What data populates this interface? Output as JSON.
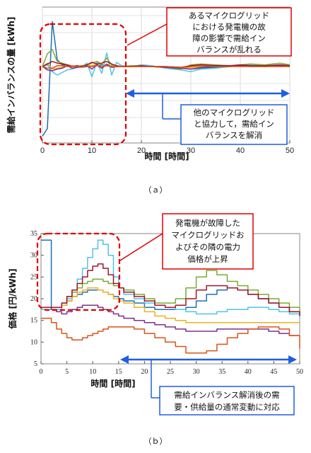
{
  "chart_data": [
    {
      "type": "line",
      "caption": "（ａ）",
      "xlabel": "時間 [時間]",
      "ylabel": "需給インバランスの量 [kWh]",
      "xlim": [
        0,
        50
      ],
      "ylim": [
        -9,
        7
      ],
      "xticks": [
        0,
        10,
        20,
        30,
        40,
        50
      ],
      "grid": true,
      "annotations": [
        {
          "text": [
            "あるマイクログリッド",
            "における発電機の故",
            "障の影響で需給イン",
            "バランスが乱れる"
          ],
          "color": "#e00000"
        },
        {
          "text": [
            "他のマイクログリッド",
            "と協力して，需給イン",
            "バランスを解消"
          ],
          "color": "#1f5fe0"
        }
      ],
      "series": [
        {
          "color": "#1f6fb5",
          "x": [
            0,
            1,
            2,
            3,
            4,
            5,
            6,
            7,
            8,
            9,
            10,
            11,
            12,
            13,
            14,
            15,
            16,
            18,
            20,
            22,
            25,
            28,
            30,
            32,
            35,
            38,
            40,
            42,
            45,
            48,
            50
          ],
          "y": [
            -8.2,
            -7.3,
            5.3,
            0.8,
            0.2,
            0.1,
            0.1,
            0.0,
            -0.1,
            0.0,
            0.1,
            0.1,
            0.2,
            0.1,
            0.0,
            0.0,
            0.0,
            0.0,
            0.1,
            0.0,
            -0.1,
            -0.2,
            -0.3,
            -0.2,
            -0.1,
            0.0,
            0.1,
            0.1,
            0.0,
            0.1,
            0.0
          ]
        },
        {
          "color": "#4fc3e8",
          "x": [
            0,
            1,
            2,
            3,
            4,
            5,
            6,
            7,
            8,
            9,
            10,
            11,
            12,
            13,
            14,
            15,
            16,
            18,
            20,
            22,
            25,
            28,
            30,
            32,
            35,
            38,
            40,
            42,
            45,
            48,
            50
          ],
          "y": [
            0,
            0.2,
            -0.6,
            -1.0,
            -0.7,
            -0.4,
            -0.3,
            -0.1,
            0.0,
            0.4,
            -1.2,
            0.5,
            -0.8,
            1.6,
            -1.0,
            0.5,
            0.1,
            0.0,
            0.2,
            0.1,
            -0.2,
            -0.4,
            -0.6,
            -0.3,
            -0.2,
            0.0,
            0.1,
            0.2,
            0.1,
            0.2,
            0.1
          ]
        },
        {
          "color": "#77ac30",
          "x": [
            0,
            1,
            2,
            3,
            4,
            5,
            6,
            7,
            8,
            9,
            10,
            11,
            12,
            13,
            14,
            15,
            16,
            18,
            20,
            22,
            25,
            28,
            30,
            32,
            35,
            38,
            40,
            42,
            45,
            48,
            50
          ],
          "y": [
            0,
            1.5,
            2.0,
            0.6,
            0.4,
            0.2,
            0.1,
            0.0,
            0.1,
            0.2,
            0.4,
            0.6,
            0.3,
            1.0,
            0.2,
            0.0,
            0.0,
            0.1,
            0.1,
            0.0,
            -0.1,
            -0.3,
            0.2,
            0.3,
            0.2,
            0.1,
            0.2,
            0.3,
            0.2,
            0.4,
            0.2
          ]
        },
        {
          "color": "#edb120",
          "x": [
            0,
            1,
            2,
            3,
            4,
            5,
            6,
            7,
            8,
            9,
            10,
            11,
            12,
            13,
            14,
            15,
            16,
            18,
            20,
            22,
            25,
            28,
            30,
            32,
            35,
            38,
            40,
            42,
            45,
            48,
            50
          ],
          "y": [
            0,
            0.4,
            -0.3,
            -0.2,
            -0.1,
            0.2,
            0.1,
            0.0,
            -0.1,
            0.2,
            0.1,
            0.3,
            -0.2,
            0.2,
            0.1,
            0.0,
            0.0,
            0.0,
            0.1,
            0.0,
            0.0,
            -0.2,
            -0.1,
            0.0,
            0.1,
            0.0,
            0.1,
            0.1,
            0.0,
            0.1,
            0.0
          ]
        },
        {
          "color": "#7e2f8e",
          "x": [
            0,
            1,
            2,
            3,
            4,
            5,
            6,
            7,
            8,
            9,
            10,
            11,
            12,
            13,
            14,
            15,
            16,
            18,
            20,
            22,
            25,
            28,
            30,
            32,
            35,
            38,
            40,
            42,
            45,
            48,
            50
          ],
          "y": [
            0,
            -0.4,
            -0.5,
            -0.3,
            -0.2,
            0.1,
            -0.2,
            -0.1,
            0.0,
            0.1,
            -0.3,
            0.2,
            -0.2,
            0.3,
            -0.1,
            0.0,
            0.0,
            0.0,
            0.0,
            0.0,
            -0.1,
            -0.2,
            -0.3,
            -0.1,
            0.0,
            0.0,
            0.1,
            0.0,
            0.0,
            0.1,
            0.0
          ]
        },
        {
          "color": "#a2142f",
          "x": [
            0,
            1,
            2,
            3,
            4,
            5,
            6,
            7,
            8,
            9,
            10,
            11,
            12,
            13,
            14,
            15,
            16,
            18,
            20,
            22,
            25,
            28,
            30,
            32,
            35,
            38,
            40,
            42,
            45,
            48,
            50
          ],
          "y": [
            0,
            0.3,
            0.6,
            0.4,
            0.3,
            0.2,
            0.0,
            0.1,
            0.0,
            0.2,
            0.5,
            0.3,
            0.4,
            0.6,
            0.3,
            0.1,
            0.0,
            0.0,
            0.1,
            0.0,
            0.0,
            -0.1,
            0.1,
            0.2,
            0.1,
            0.1,
            0.2,
            0.1,
            0.1,
            0.2,
            0.1
          ]
        },
        {
          "color": "#d95319",
          "x": [
            0,
            1,
            2,
            3,
            4,
            5,
            6,
            7,
            8,
            9,
            10,
            11,
            12,
            13,
            14,
            15,
            16,
            18,
            20,
            22,
            25,
            28,
            30,
            32,
            35,
            38,
            40,
            42,
            45,
            48,
            50
          ],
          "y": [
            0,
            -0.2,
            -0.2,
            0.1,
            0.1,
            0.0,
            0.0,
            0.0,
            0.1,
            0.0,
            0.0,
            0.1,
            0.0,
            0.1,
            0.0,
            0.0,
            0.0,
            0.0,
            0.0,
            0.0,
            0.0,
            -0.1,
            0.0,
            0.1,
            0.0,
            0.0,
            0.0,
            0.0,
            0.0,
            0.0,
            0.0
          ]
        }
      ]
    },
    {
      "type": "line",
      "caption": "（ｂ）",
      "xlabel": "時間 [時間]",
      "ylabel": "価格 [円/kWh]",
      "xlim": [
        0,
        50
      ],
      "ylim": [
        5,
        35
      ],
      "xticks": [
        0,
        5,
        10,
        15,
        20,
        25,
        30,
        35,
        40,
        45,
        50
      ],
      "yticks": [
        5,
        10,
        15,
        20,
        25,
        30,
        35
      ],
      "grid": false,
      "step": true,
      "annotations": [
        {
          "text": [
            "発電機が故障した",
            "マイクログリッドお",
            "よびその隣の電力",
            "価格が上昇"
          ],
          "color": "#e00000"
        },
        {
          "text": [
            "需給インバランス解消後の需",
            "要・供給量の通常変動に対応"
          ],
          "color": "#1f5fe0"
        }
      ],
      "series": [
        {
          "color": "#1f6fb5",
          "x": [
            0,
            1,
            2,
            3,
            4,
            5,
            6,
            7,
            8,
            9,
            10,
            11,
            12,
            13,
            14,
            15,
            16,
            18,
            20,
            22,
            24,
            26,
            28,
            30,
            32,
            34,
            36,
            38,
            40,
            42,
            44,
            46,
            48,
            50
          ],
          "y": [
            33.5,
            33.5,
            17.5,
            17.5,
            18.5,
            19.5,
            20.5,
            21.0,
            21.5,
            22.0,
            22.0,
            22.0,
            21.5,
            21.0,
            20.5,
            20.0,
            19.5,
            19.0,
            18.0,
            17.5,
            17.5,
            17.5,
            18.0,
            19.5,
            21.0,
            22.0,
            22.5,
            22.0,
            21.0,
            20.0,
            19.0,
            18.0,
            17.0,
            16.0
          ]
        },
        {
          "color": "#4fc3e8",
          "x": [
            0,
            1,
            2,
            3,
            4,
            5,
            6,
            7,
            8,
            9,
            10,
            11,
            12,
            13,
            14,
            15,
            16,
            18,
            20,
            22,
            24,
            26,
            28,
            30,
            32,
            34,
            36,
            38,
            40,
            42,
            44,
            46,
            48,
            50
          ],
          "y": [
            17.5,
            17.5,
            17.5,
            17.5,
            18.5,
            20.0,
            22.0,
            24.5,
            27.0,
            29.5,
            31.5,
            33.5,
            32.5,
            30.0,
            25.0,
            22.5,
            21.0,
            20.0,
            19.0,
            18.5,
            18.0,
            17.5,
            17.0,
            16.5,
            16.5,
            17.0,
            17.5,
            17.5,
            18.0,
            18.0,
            17.5,
            17.0,
            16.5,
            15.5
          ]
        },
        {
          "color": "#77ac30",
          "x": [
            0,
            1,
            2,
            3,
            4,
            5,
            6,
            7,
            8,
            9,
            10,
            11,
            12,
            13,
            14,
            15,
            16,
            18,
            20,
            22,
            24,
            26,
            28,
            30,
            32,
            34,
            36,
            38,
            40,
            42,
            44,
            46,
            48,
            50
          ],
          "y": [
            18.0,
            18.0,
            18.0,
            18.0,
            19.0,
            20.5,
            21.5,
            22.5,
            23.5,
            24.0,
            24.5,
            24.5,
            24.0,
            23.5,
            23.0,
            22.5,
            22.0,
            21.0,
            20.0,
            19.0,
            19.0,
            20.0,
            22.5,
            25.0,
            26.5,
            25.5,
            24.0,
            23.0,
            22.0,
            21.0,
            20.0,
            19.0,
            18.0,
            16.5
          ]
        },
        {
          "color": "#edb120",
          "x": [
            0,
            1,
            2,
            3,
            4,
            5,
            6,
            7,
            8,
            9,
            10,
            11,
            12,
            13,
            14,
            15,
            16,
            18,
            20,
            22,
            24,
            26,
            28,
            30,
            32,
            34,
            36,
            38,
            40,
            42,
            44,
            46,
            48,
            50
          ],
          "y": [
            18.0,
            18.0,
            18.0,
            18.0,
            18.5,
            19.5,
            20.5,
            21.5,
            22.0,
            22.5,
            22.5,
            22.0,
            21.5,
            21.0,
            20.0,
            19.5,
            19.0,
            18.0,
            17.0,
            16.0,
            15.5,
            15.0,
            14.5,
            14.5,
            14.5,
            14.5,
            14.5,
            14.5,
            14.5,
            14.5,
            14.5,
            14.5,
            14.5,
            14.5
          ]
        },
        {
          "color": "#7e2f8e",
          "x": [
            0,
            1,
            2,
            3,
            4,
            5,
            6,
            7,
            8,
            9,
            10,
            11,
            12,
            13,
            14,
            15,
            16,
            18,
            20,
            22,
            24,
            26,
            28,
            30,
            32,
            34,
            36,
            38,
            40,
            42,
            44,
            46,
            48,
            50
          ],
          "y": [
            18.0,
            18.0,
            17.5,
            17.0,
            16.5,
            17.0,
            17.5,
            18.0,
            18.5,
            18.5,
            18.5,
            18.0,
            17.5,
            17.0,
            16.5,
            16.0,
            15.5,
            15.0,
            14.5,
            14.0,
            13.5,
            13.0,
            12.5,
            12.5,
            12.5,
            13.0,
            13.0,
            13.0,
            13.0,
            13.0,
            12.5,
            12.0,
            11.5,
            11.5
          ]
        },
        {
          "color": "#a2142f",
          "x": [
            0,
            1,
            2,
            3,
            4,
            5,
            6,
            7,
            8,
            9,
            10,
            11,
            12,
            13,
            14,
            15,
            16,
            18,
            20,
            22,
            24,
            26,
            28,
            30,
            32,
            34,
            36,
            38,
            40,
            42,
            44,
            46,
            48,
            50
          ],
          "y": [
            18.0,
            18.0,
            18.0,
            18.0,
            19.0,
            20.5,
            22.0,
            23.5,
            25.0,
            26.5,
            27.5,
            28.0,
            27.0,
            25.5,
            23.5,
            22.5,
            21.5,
            20.5,
            19.5,
            18.5,
            18.0,
            18.5,
            20.0,
            22.0,
            23.0,
            23.0,
            22.5,
            22.0,
            21.0,
            20.0,
            19.0,
            18.0,
            17.0,
            16.0
          ]
        },
        {
          "color": "#d95319",
          "x": [
            0,
            1,
            2,
            3,
            4,
            5,
            6,
            7,
            8,
            9,
            10,
            11,
            12,
            13,
            14,
            15,
            16,
            18,
            20,
            22,
            24,
            26,
            28,
            30,
            32,
            34,
            36,
            38,
            40,
            42,
            44,
            46,
            48,
            50
          ],
          "y": [
            15.5,
            15.5,
            14.5,
            13.0,
            12.0,
            11.0,
            10.5,
            10.5,
            11.0,
            11.5,
            12.0,
            12.5,
            13.0,
            13.5,
            13.5,
            13.5,
            13.5,
            13.0,
            12.0,
            11.0,
            10.0,
            9.0,
            7.5,
            7.5,
            8.0,
            9.5,
            11.0,
            12.0,
            13.0,
            13.5,
            13.5,
            13.0,
            11.5,
            8.5
          ]
        }
      ]
    }
  ]
}
